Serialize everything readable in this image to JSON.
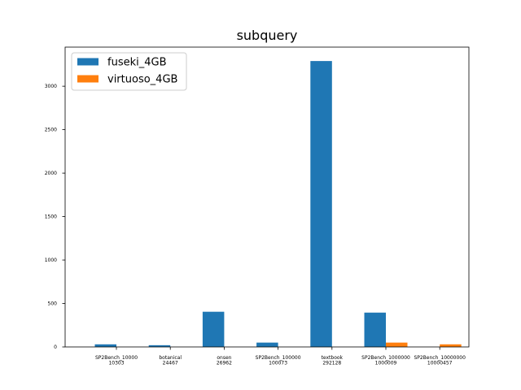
{
  "chart_data": {
    "type": "bar",
    "title": "subquery",
    "xlabel": "",
    "ylabel": "",
    "categories": [
      [
        "SP2Bench_10000",
        "10303"
      ],
      [
        "botanical",
        "24467"
      ],
      [
        "onsen",
        "26962"
      ],
      [
        "SP2Bench_100000",
        "100073"
      ],
      [
        "textbook",
        "292128"
      ],
      [
        "SP2Bench_1000000",
        "1000009"
      ],
      [
        "SP2Bench_10000000",
        "10000457"
      ]
    ],
    "series": [
      {
        "name": "fuseki_4GB",
        "color": "#1f77b4",
        "values": [
          30,
          20,
          405,
          50,
          3290,
          395,
          null
        ]
      },
      {
        "name": "virtuoso_4GB",
        "color": "#ff7f0e",
        "values": [
          null,
          null,
          null,
          null,
          null,
          50,
          30
        ]
      }
    ],
    "ylim": [
      0,
      3450
    ],
    "yticks": [
      0,
      500,
      1000,
      1500,
      2000,
      2500,
      3000
    ],
    "legend_position": "top-left",
    "grid": false
  }
}
